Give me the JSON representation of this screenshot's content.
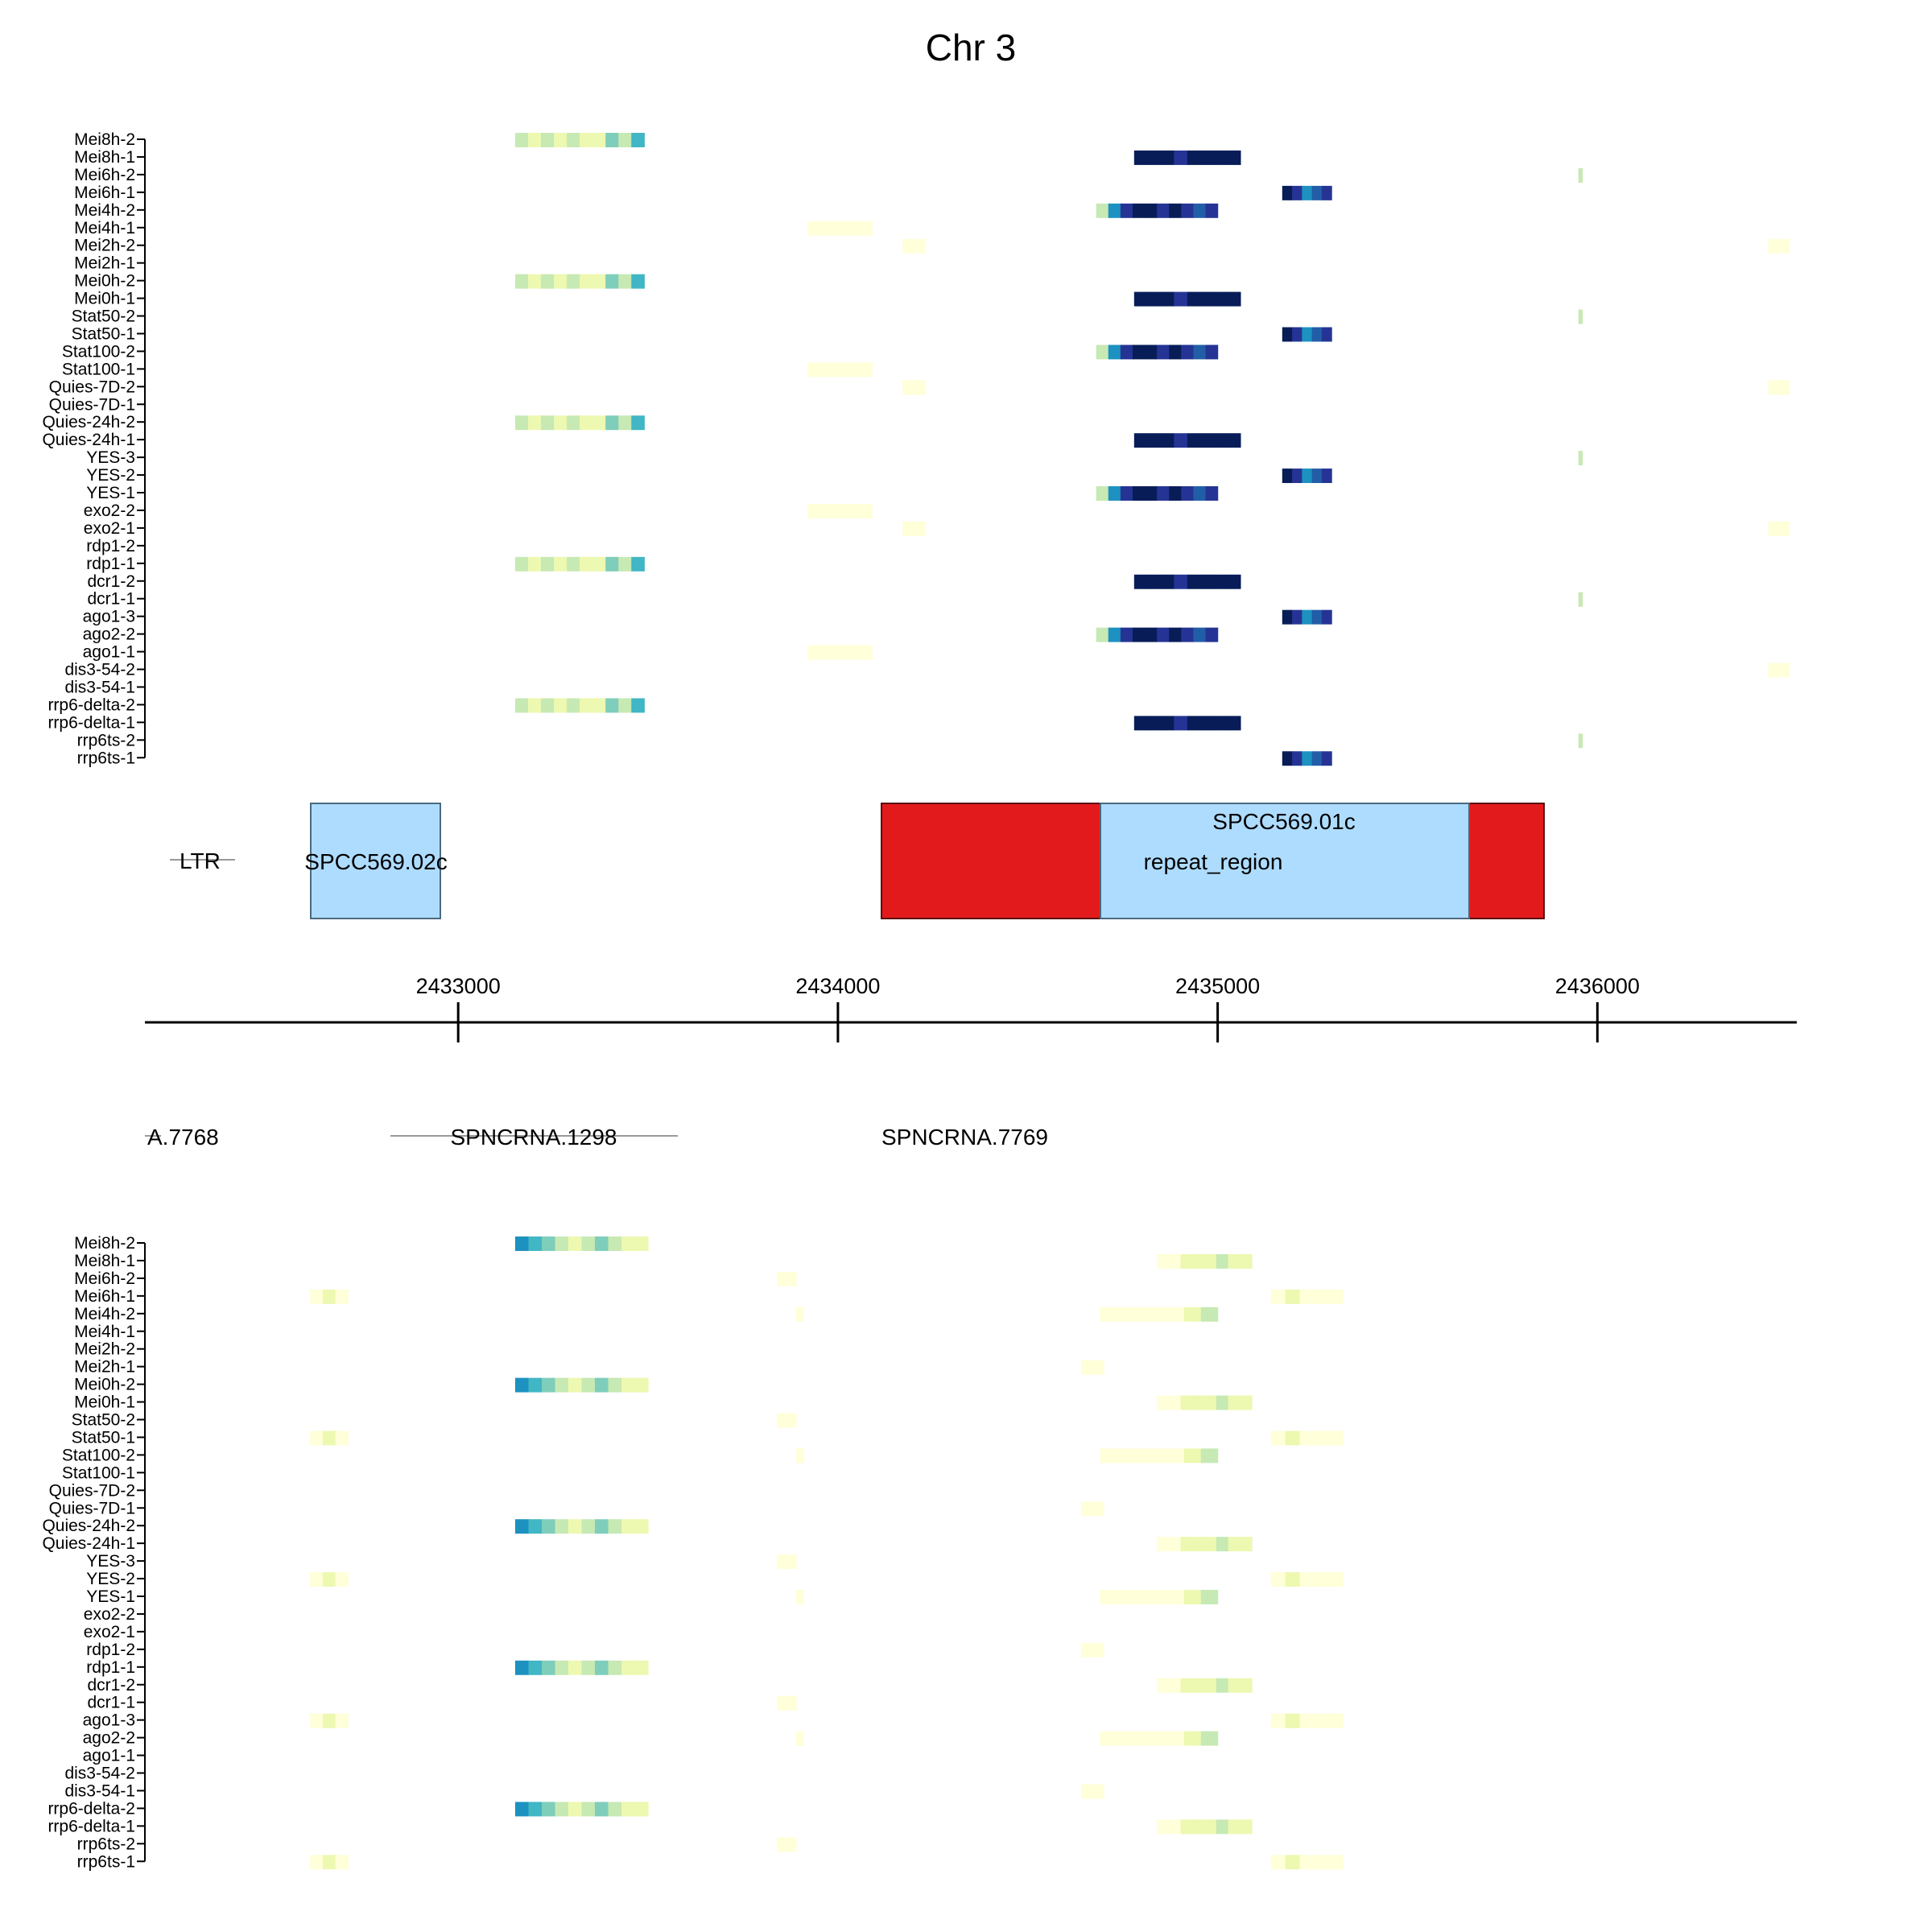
{
  "chart_data": {
    "type": "heatmap",
    "title": "Chr 3",
    "samples": [
      "Mei8h-2",
      "Mei8h-1",
      "Mei6h-2",
      "Mei6h-1",
      "Mei4h-2",
      "Mei4h-1",
      "Mei2h-2",
      "Mei2h-1",
      "Mei0h-2",
      "Mei0h-1",
      "Stat50-2",
      "Stat50-1",
      "Stat100-2",
      "Stat100-1",
      "Quies-7D-2",
      "Quies-7D-1",
      "Quies-24h-2",
      "Quies-24h-1",
      "YES-3",
      "YES-2",
      "YES-1",
      "exo2-2",
      "exo2-1",
      "rdp1-2",
      "rdp1-1",
      "dcr1-2",
      "dcr1-1",
      "ago1-3",
      "ago2-2",
      "ago1-1",
      "dis3-54-2",
      "dis3-54-1",
      "rrp6-delta-2",
      "rrp6-delta-1",
      "rrp6ts-2",
      "rrp6ts-1"
    ],
    "xlim": [
      2432175,
      2436525
    ],
    "axis": {
      "ticks": [
        2433000,
        2434000,
        2435000,
        2436000
      ],
      "tick_labels": [
        "2433000",
        "2434000",
        "2435000",
        "2436000"
      ]
    },
    "color_scale": [
      "#ffffd9",
      "#edf8b1",
      "#c7e9b4",
      "#7fcdbb",
      "#41b6c4",
      "#1d91c0",
      "#225ea8",
      "#253494",
      "#081d58"
    ],
    "top_track": {
      "strand": "top",
      "segments": [
        {
          "from": 0,
          "to": 8,
          "rows": [
            0,
            8,
            16,
            24,
            32
          ],
          "start": 2433150,
          "end": 2433490,
          "levels": [
            2,
            1,
            2,
            1,
            2,
            1,
            1,
            3,
            2,
            4
          ]
        },
        {
          "from": 0,
          "to": 8,
          "rows": [
            1,
            9,
            17,
            25,
            33
          ],
          "start": 2434780,
          "end": 2435060,
          "levels": [
            8,
            8,
            8,
            7,
            8,
            8,
            8,
            8
          ]
        },
        {
          "from": 0,
          "to": 8,
          "rows": [
            3,
            11,
            19,
            27,
            35
          ],
          "start": 2435170,
          "end": 2435300,
          "levels": [
            8,
            7,
            5,
            6,
            7
          ]
        },
        {
          "from": 0,
          "to": 8,
          "rows": [
            4,
            12,
            20,
            28
          ],
          "start": 2434680,
          "end": 2435000,
          "levels": [
            2,
            5,
            7,
            8,
            8,
            7,
            8,
            7,
            6,
            7
          ]
        },
        {
          "from": 0,
          "to": 8,
          "rows": [
            5,
            13,
            21,
            29
          ],
          "start": 2433920,
          "end": 2434090,
          "levels": [
            0
          ]
        },
        {
          "from": 0,
          "to": 8,
          "rows": [
            6,
            14,
            22
          ],
          "start": 2434170,
          "end": 2434230,
          "levels": [
            0
          ]
        },
        {
          "from": 0,
          "to": 8,
          "rows": [
            2,
            10,
            18,
            26,
            34
          ],
          "start": 2435950,
          "end": 2435960,
          "levels": [
            2
          ]
        },
        {
          "from": 0,
          "to": 8,
          "rows": [
            6,
            14,
            22,
            30
          ],
          "start": 2436450,
          "end": 2436505,
          "levels": [
            0
          ]
        }
      ]
    },
    "bottom_track": {
      "strand": "bottom",
      "segments": [
        {
          "from": 0,
          "to": 8,
          "rows": [
            0,
            8,
            16,
            24,
            32
          ],
          "start": 2433150,
          "end": 2433500,
          "levels": [
            5,
            4,
            3,
            2,
            1,
            2,
            3,
            2,
            1,
            1
          ]
        },
        {
          "from": 0,
          "to": 8,
          "rows": [
            1,
            9,
            17,
            25,
            33
          ],
          "start": 2434840,
          "end": 2435090,
          "levels": [
            0,
            0,
            1,
            1,
            1,
            2,
            1,
            1
          ]
        },
        {
          "from": 0,
          "to": 8,
          "rows": [
            2,
            10,
            18,
            26,
            34
          ],
          "start": 2433840,
          "end": 2433890,
          "levels": [
            0
          ]
        },
        {
          "from": 0,
          "to": 8,
          "rows": [
            3,
            11,
            19,
            27,
            35
          ],
          "start": 2432610,
          "end": 2432710,
          "levels": [
            0,
            1,
            0
          ]
        },
        {
          "from": 0,
          "to": 8,
          "rows": [
            3,
            11,
            19,
            27,
            35
          ],
          "start": 2435140,
          "end": 2435330,
          "levels": [
            0,
            1,
            0,
            0,
            0
          ]
        },
        {
          "from": 0,
          "to": 8,
          "rows": [
            4,
            12,
            20,
            28
          ],
          "start": 2434690,
          "end": 2435000,
          "levels": [
            0,
            0,
            0,
            0,
            0,
            1,
            2
          ]
        },
        {
          "from": 0,
          "to": 8,
          "rows": [
            7,
            15,
            23,
            31
          ],
          "start": 2434640,
          "end": 2434700,
          "levels": [
            0
          ]
        },
        {
          "from": 0,
          "to": 8,
          "rows": [
            4,
            12,
            20,
            28
          ],
          "start": 2433890,
          "end": 2433910,
          "levels": [
            0
          ]
        }
      ]
    }
  },
  "top_features": [
    {
      "label": "LTR",
      "type": "line"
    },
    {
      "label": "SPCC569.02c",
      "type": "box"
    },
    {
      "label": "repeat_region",
      "type": "box"
    },
    {
      "label": "SPCC569.01c",
      "type": "box"
    }
  ],
  "bottom_features": [
    {
      "label": "A.7768",
      "type": "line"
    },
    {
      "label": "SPNCRNA.1298",
      "type": "line"
    },
    {
      "label": "SPNCRNA.7769",
      "type": "text"
    }
  ],
  "colors": {
    "repeat_region": "#e31a1c",
    "gene_box": "#aedcff",
    "gene_box_border": "#4a6a80",
    "feature_line": "#999999"
  }
}
